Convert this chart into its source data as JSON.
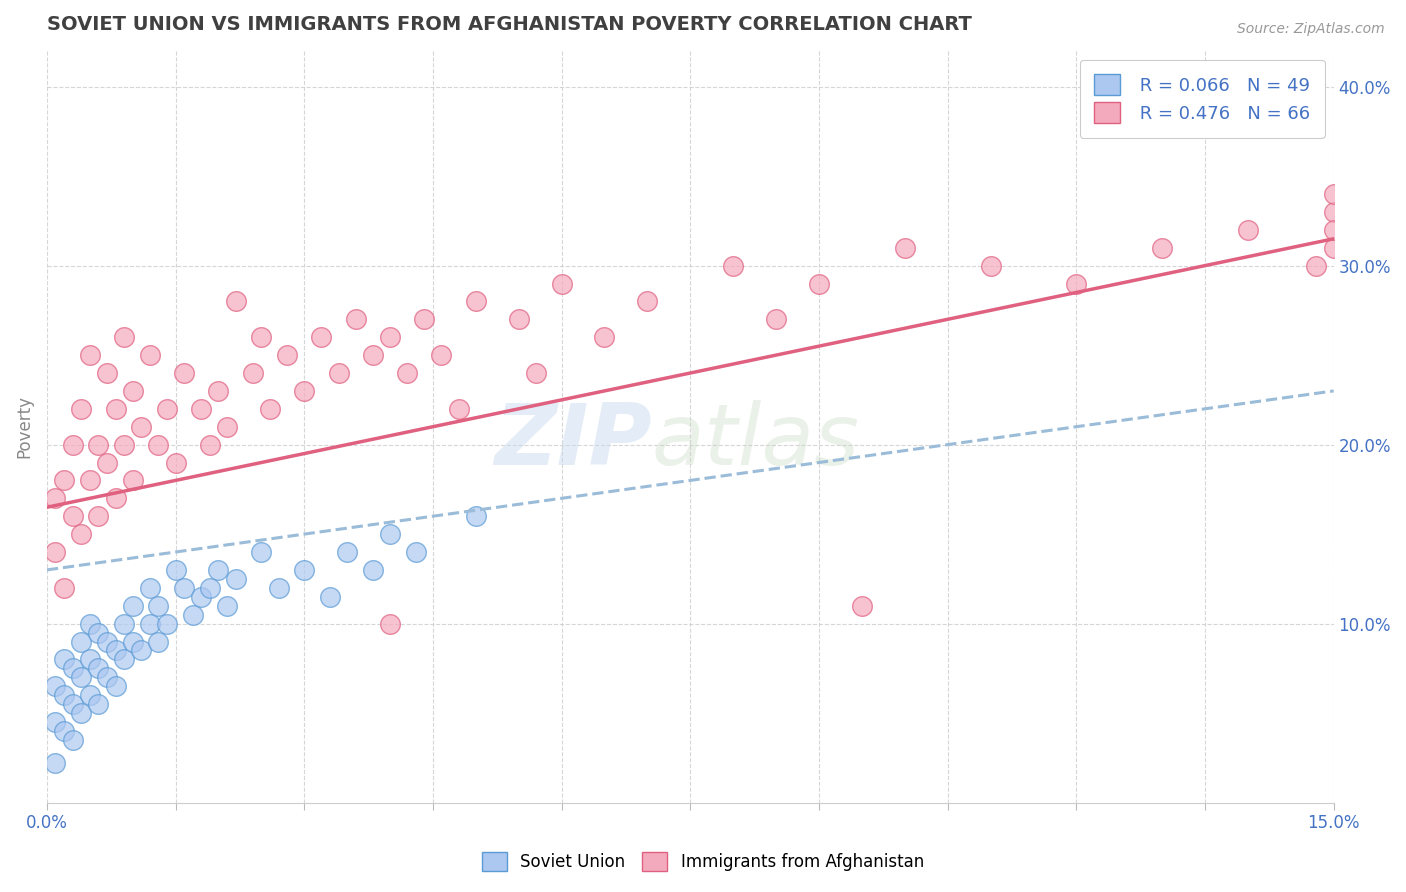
{
  "title": "SOVIET UNION VS IMMIGRANTS FROM AFGHANISTAN POVERTY CORRELATION CHART",
  "source": "Source: ZipAtlas.com",
  "ylabel": "Poverty",
  "xlim": [
    0.0,
    0.15
  ],
  "ylim": [
    0.0,
    0.42
  ],
  "xticks": [
    0.0,
    0.015,
    0.03,
    0.045,
    0.06,
    0.075,
    0.09,
    0.105,
    0.12,
    0.135,
    0.15
  ],
  "xtick_labels": [
    "0.0%",
    "",
    "",
    "",
    "",
    "",
    "",
    "",
    "",
    "",
    "15.0%"
  ],
  "yticks_right": [
    0.1,
    0.2,
    0.3,
    0.4
  ],
  "ytick_labels_right": [
    "10.0%",
    "20.0%",
    "30.0%",
    "40.0%"
  ],
  "blue_color": "#adc8f0",
  "blue_edge": "#5b9bd5",
  "pink_color": "#f4aabd",
  "pink_edge": "#e06080",
  "pink_line_color": "#e06080",
  "blue_line_color": "#9bbcd8",
  "r_blue": 0.066,
  "n_blue": 49,
  "r_pink": 0.476,
  "n_pink": 66,
  "watermark_zip": "ZIP",
  "watermark_atlas": "atlas",
  "grid_color": "#cccccc",
  "background_color": "#ffffff",
  "title_color": "#404040",
  "title_fontsize": 14,
  "axis_label_color": "#888888",
  "tick_color": "#4472c4",
  "blue_scatter_x": [
    0.001,
    0.001,
    0.001,
    0.002,
    0.002,
    0.002,
    0.003,
    0.003,
    0.003,
    0.004,
    0.004,
    0.004,
    0.005,
    0.005,
    0.005,
    0.006,
    0.006,
    0.006,
    0.007,
    0.007,
    0.008,
    0.008,
    0.009,
    0.009,
    0.01,
    0.01,
    0.011,
    0.012,
    0.012,
    0.013,
    0.013,
    0.014,
    0.015,
    0.016,
    0.017,
    0.018,
    0.019,
    0.02,
    0.021,
    0.022,
    0.025,
    0.027,
    0.03,
    0.033,
    0.035,
    0.038,
    0.04,
    0.043,
    0.05
  ],
  "blue_scatter_y": [
    0.022,
    0.045,
    0.065,
    0.04,
    0.06,
    0.08,
    0.035,
    0.055,
    0.075,
    0.05,
    0.07,
    0.09,
    0.06,
    0.08,
    0.1,
    0.055,
    0.075,
    0.095,
    0.07,
    0.09,
    0.065,
    0.085,
    0.08,
    0.1,
    0.09,
    0.11,
    0.085,
    0.1,
    0.12,
    0.09,
    0.11,
    0.1,
    0.13,
    0.12,
    0.105,
    0.115,
    0.12,
    0.13,
    0.11,
    0.125,
    0.14,
    0.12,
    0.13,
    0.115,
    0.14,
    0.13,
    0.15,
    0.14,
    0.16
  ],
  "pink_scatter_x": [
    0.001,
    0.001,
    0.002,
    0.002,
    0.003,
    0.003,
    0.004,
    0.004,
    0.005,
    0.005,
    0.006,
    0.006,
    0.007,
    0.007,
    0.008,
    0.008,
    0.009,
    0.009,
    0.01,
    0.01,
    0.011,
    0.012,
    0.013,
    0.014,
    0.015,
    0.016,
    0.018,
    0.019,
    0.02,
    0.021,
    0.022,
    0.024,
    0.025,
    0.026,
    0.028,
    0.03,
    0.032,
    0.034,
    0.036,
    0.038,
    0.04,
    0.04,
    0.042,
    0.044,
    0.046,
    0.048,
    0.05,
    0.055,
    0.057,
    0.06,
    0.065,
    0.07,
    0.08,
    0.085,
    0.09,
    0.095,
    0.1,
    0.11,
    0.12,
    0.13,
    0.14,
    0.148,
    0.15,
    0.15,
    0.15,
    0.15
  ],
  "pink_scatter_y": [
    0.14,
    0.17,
    0.12,
    0.18,
    0.16,
    0.2,
    0.15,
    0.22,
    0.18,
    0.25,
    0.16,
    0.2,
    0.19,
    0.24,
    0.17,
    0.22,
    0.2,
    0.26,
    0.18,
    0.23,
    0.21,
    0.25,
    0.2,
    0.22,
    0.19,
    0.24,
    0.22,
    0.2,
    0.23,
    0.21,
    0.28,
    0.24,
    0.26,
    0.22,
    0.25,
    0.23,
    0.26,
    0.24,
    0.27,
    0.25,
    0.26,
    0.1,
    0.24,
    0.27,
    0.25,
    0.22,
    0.28,
    0.27,
    0.24,
    0.29,
    0.26,
    0.28,
    0.3,
    0.27,
    0.29,
    0.11,
    0.31,
    0.3,
    0.29,
    0.31,
    0.32,
    0.3,
    0.33,
    0.31,
    0.34,
    0.32
  ],
  "blue_trend_x0": 0.0,
  "blue_trend_y0": 0.13,
  "blue_trend_x1": 0.15,
  "blue_trend_y1": 0.23,
  "pink_trend_x0": 0.0,
  "pink_trend_y0": 0.165,
  "pink_trend_x1": 0.15,
  "pink_trend_y1": 0.315
}
